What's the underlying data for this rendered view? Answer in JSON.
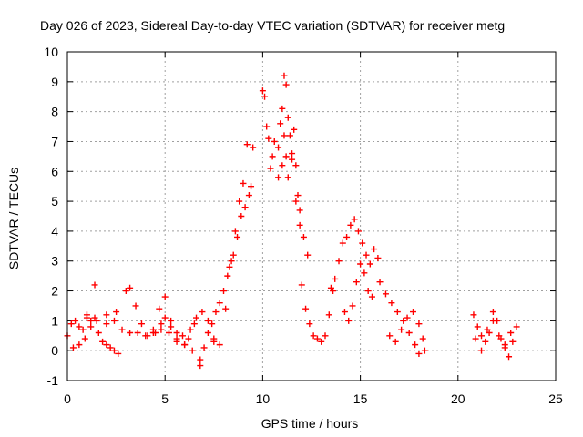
{
  "chart_data": {
    "type": "scatter",
    "title": "Day 026 of 2023, Sidereal Day-to-day VTEC variation (SDTVAR) for receiver metg",
    "xlabel": "GPS time / hours",
    "ylabel": "SDTVAR / TECUs",
    "xlim": [
      0,
      25
    ],
    "ylim": [
      -1,
      10
    ],
    "xticks": [
      "0",
      "5",
      "10",
      "15",
      "20",
      "25"
    ],
    "yticks": [
      "-1",
      "0",
      "1",
      "2",
      "3",
      "4",
      "5",
      "6",
      "7",
      "8",
      "9",
      "10"
    ],
    "grid": true,
    "marker": "plus",
    "color": "#ff0000",
    "series": [
      {
        "name": "SDTVAR",
        "x": [
          0.0,
          0.2,
          0.4,
          0.6,
          0.8,
          1.0,
          1.2,
          1.4,
          1.6,
          1.8,
          2.0,
          2.2,
          2.4,
          2.6,
          0.3,
          0.6,
          0.9,
          1.2,
          1.4,
          2.0,
          2.4,
          2.8,
          3.2,
          3.6,
          4.0,
          4.4,
          4.8,
          5.2,
          5.6,
          6.0,
          6.4,
          6.8,
          1.0,
          1.5,
          2.0,
          2.5,
          3.0,
          3.2,
          3.5,
          3.8,
          4.1,
          4.4,
          4.7,
          5.0,
          5.3,
          5.6,
          5.9,
          6.2,
          6.5,
          4.5,
          4.8,
          5.0,
          5.3,
          5.6,
          6.0,
          6.3,
          6.6,
          6.9,
          6.8,
          7.0,
          7.2,
          7.4,
          7.5,
          7.6,
          7.8,
          8.0,
          8.2,
          8.4,
          8.6,
          8.8,
          9.0,
          9.2,
          9.4,
          7.2,
          7.5,
          7.8,
          8.1,
          8.3,
          8.5,
          8.7,
          8.9,
          9.1,
          9.3,
          9.5,
          10.0,
          10.1,
          10.2,
          10.3,
          10.4,
          10.5,
          10.6,
          10.8,
          10.9,
          11.0,
          11.1,
          11.2,
          11.3,
          11.4,
          11.5,
          11.6,
          11.7,
          11.8,
          11.9,
          10.8,
          11.0,
          11.1,
          11.2,
          11.3,
          11.5,
          11.7,
          11.9,
          12.1,
          12.3,
          12.0,
          12.2,
          12.4,
          12.6,
          12.8,
          13.0,
          13.2,
          13.4,
          13.6,
          13.5,
          13.7,
          13.9,
          14.1,
          14.3,
          14.5,
          14.7,
          14.9,
          15.1,
          15.3,
          15.5,
          15.7,
          15.9,
          14.2,
          14.4,
          14.6,
          14.8,
          15.0,
          15.2,
          15.4,
          15.6,
          16.0,
          16.3,
          16.6,
          16.9,
          17.2,
          17.5,
          17.8,
          18.0,
          18.2,
          16.5,
          16.8,
          17.1,
          17.4,
          17.7,
          18.0,
          18.3,
          20.8,
          21.0,
          21.2,
          21.4,
          21.6,
          21.8,
          22.0,
          22.2,
          22.4,
          22.6,
          22.8,
          23.0,
          20.9,
          21.2,
          21.5,
          21.8,
          22.1,
          22.4,
          22.7
        ],
        "y": [
          0.5,
          0.9,
          1.0,
          0.8,
          0.7,
          1.2,
          1.0,
          2.2,
          0.6,
          0.3,
          0.2,
          0.1,
          0.0,
          -0.1,
          0.1,
          0.2,
          0.4,
          0.8,
          1.1,
          1.2,
          1.0,
          0.7,
          0.6,
          0.6,
          0.5,
          0.6,
          0.7,
          0.6,
          0.4,
          0.2,
          0.0,
          -0.3,
          1.1,
          1.0,
          0.9,
          1.3,
          2.0,
          2.1,
          1.5,
          0.9,
          0.5,
          0.7,
          1.4,
          1.8,
          1.0,
          0.6,
          0.5,
          0.4,
          0.9,
          0.6,
          0.9,
          1.1,
          0.8,
          0.3,
          0.2,
          0.7,
          1.1,
          1.3,
          -0.5,
          0.1,
          0.6,
          0.9,
          0.3,
          1.3,
          1.6,
          2.0,
          2.5,
          3.0,
          4.0,
          5.0,
          5.6,
          6.9,
          5.5,
          1.0,
          0.4,
          0.2,
          1.4,
          2.8,
          3.2,
          3.8,
          4.5,
          4.8,
          5.2,
          6.8,
          8.7,
          8.5,
          7.5,
          7.1,
          6.1,
          6.5,
          7.0,
          6.8,
          7.6,
          8.1,
          9.2,
          8.9,
          7.8,
          7.2,
          6.6,
          7.4,
          6.2,
          5.2,
          4.7,
          5.8,
          6.2,
          7.2,
          6.5,
          5.8,
          6.4,
          5.0,
          4.2,
          3.8,
          3.2,
          2.2,
          1.4,
          0.9,
          0.5,
          0.4,
          0.3,
          0.5,
          1.2,
          2.0,
          2.1,
          2.4,
          3.0,
          3.6,
          3.8,
          4.2,
          4.4,
          4.0,
          3.6,
          3.2,
          2.9,
          3.4,
          3.1,
          1.3,
          1.0,
          1.5,
          2.3,
          2.9,
          2.6,
          2.0,
          1.8,
          2.3,
          1.9,
          1.6,
          1.3,
          1.0,
          0.6,
          0.2,
          -0.1,
          0.4,
          0.5,
          0.3,
          0.7,
          1.1,
          1.3,
          0.9,
          0.0,
          1.2,
          0.8,
          0.5,
          0.3,
          0.6,
          1.3,
          1.0,
          0.4,
          0.1,
          -0.2,
          0.3,
          0.8,
          0.4,
          0.0,
          0.7,
          1.0,
          0.5,
          0.2,
          0.6
        ]
      }
    ]
  }
}
